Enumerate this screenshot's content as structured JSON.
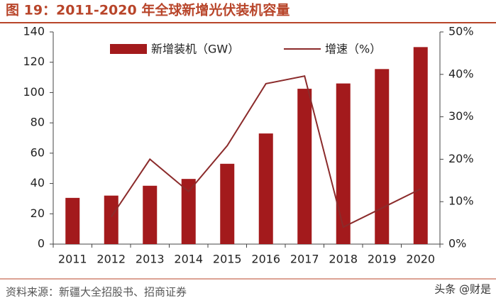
{
  "chart_data": {
    "type": "bar_line",
    "title": "图 19：2011-2020 年全球新增光伏装机容量",
    "source": "资料来源：新疆大全招股书、招商证券",
    "watermark": "头条 @财是",
    "categories": [
      "2011",
      "2012",
      "2013",
      "2014",
      "2015",
      "2016",
      "2017",
      "2018",
      "2019",
      "2020"
    ],
    "series": [
      {
        "name": "新增装机（GW）",
        "type": "bar",
        "color": "#a31a1c",
        "values": [
          30.5,
          32,
          38.5,
          43,
          53,
          73,
          102.5,
          106,
          115.5,
          130
        ]
      },
      {
        "name": "增速（%）",
        "type": "line",
        "axis": "y2",
        "color": "#8b2b2b",
        "values": [
          null,
          6.4,
          20,
          12.4,
          23.2,
          37.8,
          39.6,
          4,
          8.5,
          13
        ]
      }
    ],
    "ylim": [
      0,
      140
    ],
    "yticks": [
      0,
      20,
      40,
      60,
      80,
      100,
      120,
      140
    ],
    "y2lim": [
      0,
      50
    ],
    "y2ticks": [
      {
        "value": 0,
        "label": "0%"
      },
      {
        "value": 10,
        "label": "10%"
      },
      {
        "value": 20,
        "label": "20%"
      },
      {
        "value": 30,
        "label": "30%"
      },
      {
        "value": 40,
        "label": "40%"
      },
      {
        "value": 50,
        "label": "50%"
      }
    ],
    "grid": false
  }
}
